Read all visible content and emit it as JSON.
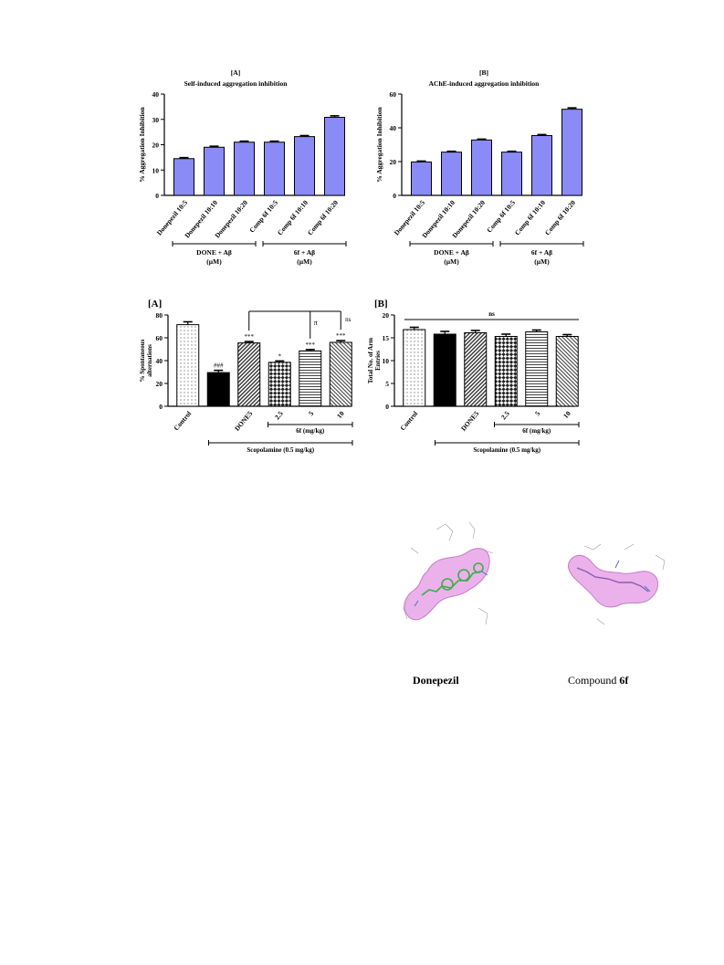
{
  "colors": {
    "bar": "#8b8bf7",
    "axis": "#000000",
    "surface": "#e7a3e7"
  },
  "chart_data": [
    {
      "type": "bar",
      "id": "self-induced",
      "panel": "[A]",
      "title": "Self-induced aggregation inhibition",
      "ylabel": "%  Aggregation Inhibition",
      "ylim": [
        0,
        40
      ],
      "yticks": [
        "0",
        "10",
        "20",
        "30",
        "40"
      ],
      "categories": [
        "Donepezil 10:5",
        "Donepezil 10:10",
        "Donepezil 10:20",
        "Comp 6f 10:5",
        "Comp 6f 10:10",
        "Comp 6f 10:20"
      ],
      "values": [
        14.5,
        19,
        21,
        21,
        23.2,
        30.8
      ],
      "errors": [
        0.4,
        0.4,
        0.4,
        0.4,
        0.4,
        0.6
      ],
      "groups": [
        {
          "label": "DONE + Aβ",
          "unit": "(µM)",
          "from": 0,
          "to": 2
        },
        {
          "label": "6f + Aβ",
          "unit": "(µM)",
          "from": 3,
          "to": 5
        }
      ]
    },
    {
      "type": "bar",
      "id": "ache-induced",
      "panel": "[B]",
      "title": "AChE-induced aggregation inhibition",
      "ylabel": "% Aggregation Inhibition",
      "ylim": [
        0,
        60
      ],
      "yticks": [
        "0",
        "20",
        "40",
        "60"
      ],
      "categories": [
        "Donepezil 10:5",
        "Donepezil 10:10",
        "Donepezil 10:20",
        "Comp 6f 10:5",
        "Comp 6f 10:10",
        "Comp 6f 10:20"
      ],
      "values": [
        19.8,
        25.6,
        32.8,
        25.6,
        35.4,
        51
      ],
      "errors": [
        0.5,
        0.5,
        0.5,
        0.5,
        0.6,
        0.8
      ],
      "groups": [
        {
          "label": "DONE + Aβ",
          "unit": "(µM)",
          "from": 0,
          "to": 2
        },
        {
          "label": "6f + Aβ",
          "unit": "(µM)",
          "from": 3,
          "to": 5
        }
      ]
    },
    {
      "type": "bar",
      "id": "spontaneous",
      "panel": "[A]",
      "ylabel": "% Spontaneous alternations",
      "ylim": [
        0,
        80
      ],
      "yticks": [
        "0",
        "20",
        "40",
        "60",
        "80"
      ],
      "categories": [
        "Control",
        "",
        "DONE5",
        "2.5",
        "5",
        "10"
      ],
      "values": [
        71.5,
        29.5,
        55.5,
        38.5,
        48.5,
        56
      ],
      "errors": [
        2.5,
        2,
        1.2,
        1.2,
        1.2,
        1.5
      ],
      "patterns": [
        "dots",
        "solid",
        "diag",
        "check",
        "hlines",
        "diag2"
      ],
      "annotations": [
        "",
        "###",
        "***",
        "*",
        "***",
        "***"
      ],
      "sub_label": "6f (mg/kg)",
      "bottom_label": "Scopolamine (0.5 mg/kg)",
      "brackets": [
        "π",
        "ns"
      ]
    },
    {
      "type": "bar",
      "id": "arm-entries",
      "panel": "[B]",
      "ylabel": "Total No. of Arm Entries",
      "ylim": [
        0,
        20
      ],
      "yticks": [
        "0",
        "5",
        "10",
        "15",
        "20"
      ],
      "categories": [
        "Control",
        "",
        "DONE5",
        "2.5",
        "5",
        "10"
      ],
      "values": [
        16.8,
        15.8,
        16.1,
        15.3,
        16.3,
        15.3
      ],
      "errors": [
        0.5,
        0.6,
        0.5,
        0.5,
        0.4,
        0.4
      ],
      "patterns": [
        "dots",
        "solid",
        "diag",
        "check",
        "hlines",
        "diag2"
      ],
      "sub_label": "6f (mg/kg)",
      "bottom_label": "Scopolamine (0.5 mg/kg)",
      "ns_label": "ns"
    }
  ],
  "molecules": {
    "left_label": "Donepezil",
    "right_label_prefix": "Compound ",
    "right_label_bold": "6f"
  }
}
